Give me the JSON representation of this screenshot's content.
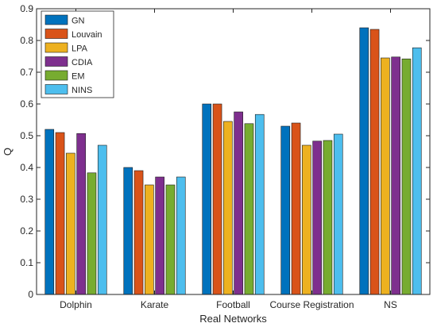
{
  "chart_data": {
    "type": "bar",
    "title": "",
    "xlabel": "Real Networks",
    "ylabel": "Q",
    "ylim": [
      0,
      0.9
    ],
    "yticks": [
      "0",
      "0.1",
      "0.2",
      "0.3",
      "0.4",
      "0.5",
      "0.6",
      "0.7",
      "0.8",
      "0.9"
    ],
    "grid": false,
    "legend_position": "top-left",
    "categories": [
      "Dolphin",
      "Karate",
      "Football",
      "Course Registration",
      "NS"
    ],
    "series": [
      {
        "name": "GN",
        "color": "#0072BD",
        "values": [
          0.52,
          0.4,
          0.6,
          0.53,
          0.84
        ]
      },
      {
        "name": "Louvain",
        "color": "#D95319",
        "values": [
          0.51,
          0.39,
          0.6,
          0.54,
          0.835
        ]
      },
      {
        "name": "LPA",
        "color": "#EDB120",
        "values": [
          0.445,
          0.345,
          0.545,
          0.47,
          0.745
        ]
      },
      {
        "name": "CDIA",
        "color": "#7E2F8E",
        "values": [
          0.507,
          0.37,
          0.575,
          0.483,
          0.748
        ]
      },
      {
        "name": "EM",
        "color": "#77AC30",
        "values": [
          0.383,
          0.345,
          0.538,
          0.485,
          0.742
        ]
      },
      {
        "name": "NINS",
        "color": "#4DBEEE",
        "values": [
          0.47,
          0.37,
          0.567,
          0.505,
          0.777
        ]
      }
    ]
  }
}
